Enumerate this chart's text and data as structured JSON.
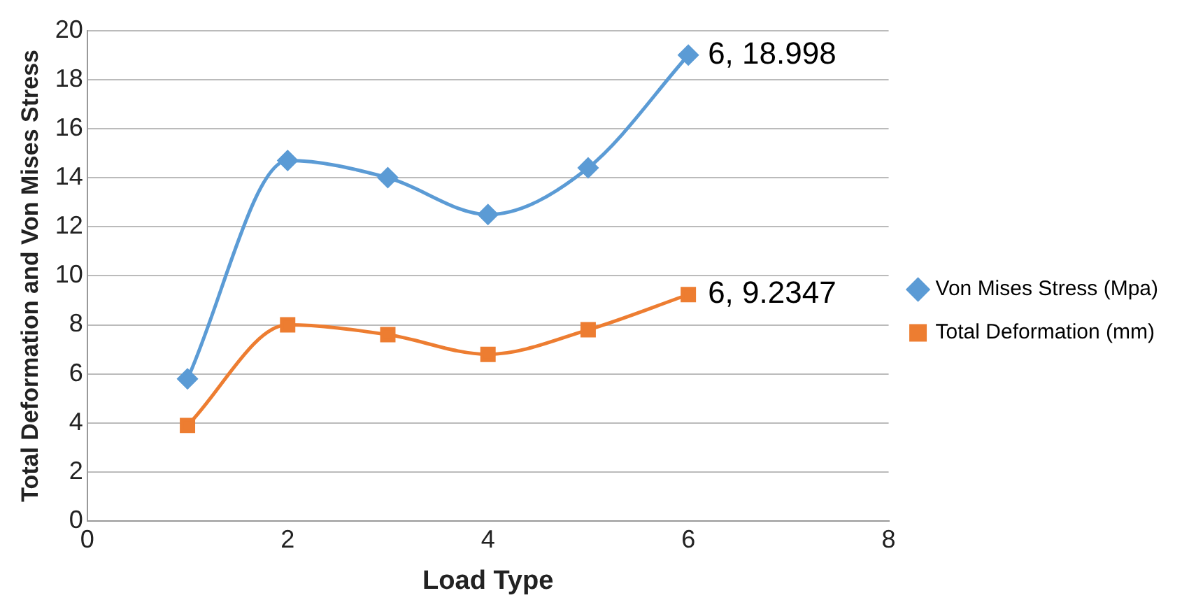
{
  "chart_data": {
    "type": "line",
    "xlabel": "Load Type",
    "ylabel": "Total Deformation and Von Mises Stress",
    "x": [
      1,
      2,
      3,
      4,
      5,
      6
    ],
    "xlim": [
      0,
      8
    ],
    "xticks": [
      0,
      2,
      4,
      6,
      8
    ],
    "ylim": [
      0,
      20
    ],
    "yticks": [
      0,
      2,
      4,
      6,
      8,
      10,
      12,
      14,
      16,
      18,
      20
    ],
    "grid": "y",
    "legend": "right",
    "series": [
      {
        "name": "Von Mises Stress (Mpa)",
        "color": "#5b9bd5",
        "marker": "diamond",
        "values": [
          5.8,
          14.7,
          14.0,
          12.5,
          14.4,
          18.998
        ],
        "value_labels": [
          null,
          null,
          null,
          null,
          null,
          "6, 18.998"
        ]
      },
      {
        "name": "Total Deformation (mm)",
        "color": "#ed7d31",
        "marker": "square",
        "values": [
          3.9,
          8.0,
          7.6,
          6.8,
          7.8,
          9.2347
        ],
        "value_labels": [
          null,
          null,
          null,
          null,
          null,
          "6, 9.2347"
        ]
      }
    ]
  }
}
